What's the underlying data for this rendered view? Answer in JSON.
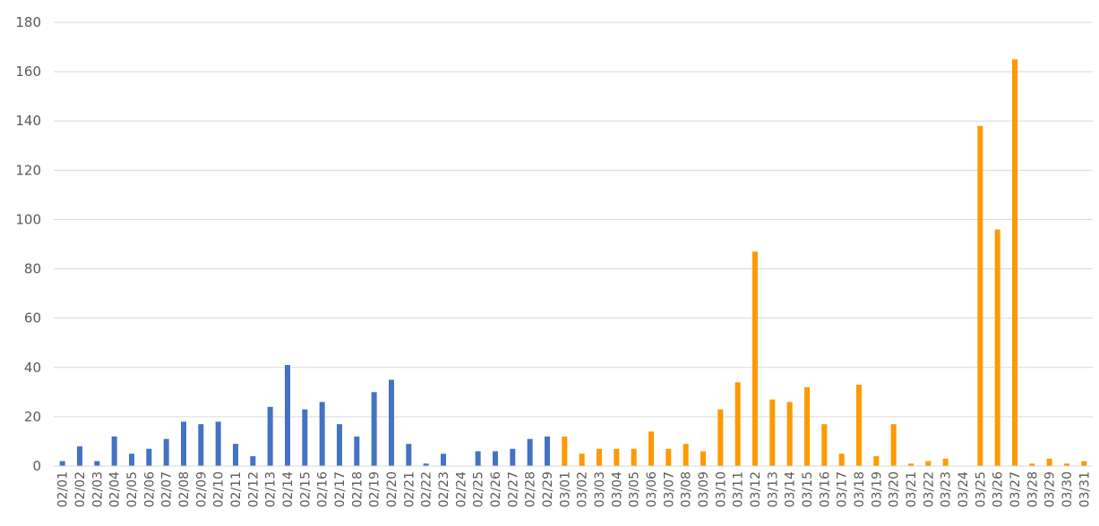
{
  "chart_data": {
    "type": "bar",
    "title": "",
    "xlabel": "",
    "ylabel": "",
    "ylim": [
      0,
      180
    ],
    "yticks": [
      0,
      20,
      40,
      60,
      80,
      100,
      120,
      140,
      160,
      180
    ],
    "grid": true,
    "legend": "none",
    "colors": {
      "february": "#4472c4",
      "march": "#ff9900"
    },
    "categories": [
      "02/01",
      "02/02",
      "02/03",
      "02/04",
      "02/05",
      "02/06",
      "02/07",
      "02/08",
      "02/09",
      "02/10",
      "02/11",
      "02/12",
      "02/13",
      "02/14",
      "02/15",
      "02/16",
      "02/17",
      "02/18",
      "02/19",
      "02/20",
      "02/21",
      "02/22",
      "02/23",
      "02/24",
      "02/25",
      "02/26",
      "02/27",
      "02/28",
      "02/29",
      "03/01",
      "03/02",
      "03/03",
      "03/04",
      "03/05",
      "03/06",
      "03/07",
      "03/08",
      "03/09",
      "03/10",
      "03/11",
      "03/12",
      "03/13",
      "03/14",
      "03/15",
      "03/16",
      "03/17",
      "03/18",
      "03/19",
      "03/20",
      "03/21",
      "03/22",
      "03/23",
      "03/24",
      "03/25",
      "03/26",
      "03/27",
      "03/28",
      "03/29",
      "03/30",
      "03/31"
    ],
    "values": [
      2,
      8,
      2,
      12,
      5,
      7,
      11,
      18,
      17,
      18,
      9,
      4,
      24,
      41,
      23,
      26,
      17,
      12,
      30,
      35,
      9,
      1,
      5,
      0,
      6,
      6,
      7,
      11,
      12,
      12,
      5,
      7,
      7,
      7,
      14,
      7,
      9,
      6,
      23,
      34,
      87,
      27,
      26,
      32,
      17,
      5,
      33,
      4,
      17,
      1,
      2,
      3,
      0,
      138,
      96,
      165,
      1,
      3,
      1,
      2
    ]
  }
}
